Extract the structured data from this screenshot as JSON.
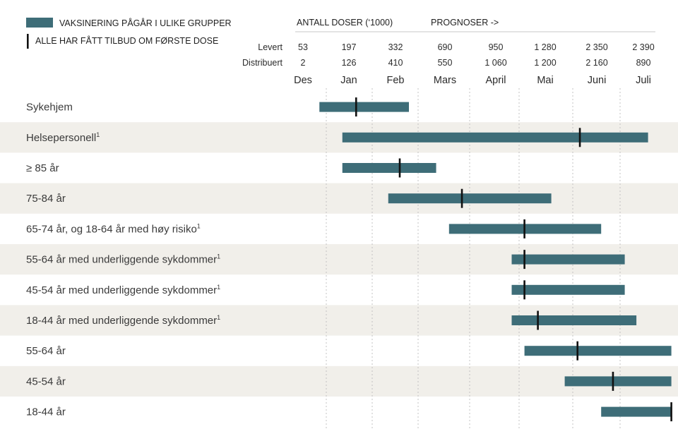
{
  "chart_data": {
    "type": "gantt",
    "legend": {
      "bar_label": "VAKSINERING PÅGÅR I ULIKE GRUPPER",
      "marker_label": "ALLE HAR FÅTT TILBUD OM FØRSTE DOSE"
    },
    "header": {
      "doses_title": "ANTALL DOSER (‘1000)",
      "forecast_title": "PROGNOSER ->"
    },
    "months": [
      "Des",
      "Jan",
      "Feb",
      "Mars",
      "April",
      "Mai",
      "Juni",
      "Juli"
    ],
    "doses": [
      {
        "label": "Levert",
        "values": [
          "53",
          "197",
          "332",
          "690",
          "950",
          "1 280",
          "2 350",
          "2 390"
        ]
      },
      {
        "label": "Distribuert",
        "values": [
          "2",
          "126",
          "410",
          "550",
          "1 060",
          "1 200",
          "2 160",
          "890"
        ]
      }
    ],
    "rows": [
      {
        "label": "Sykehjem",
        "sup": "",
        "start": 0.85,
        "end": 2.8,
        "marker": 1.65
      },
      {
        "label": "Helsepersonell",
        "sup": "1",
        "start": 1.35,
        "end": 7.6,
        "marker": 6.15
      },
      {
        "label": "≥ 85 år",
        "sup": "",
        "start": 1.35,
        "end": 3.35,
        "marker": 2.6
      },
      {
        "label": "75-84 år",
        "sup": "",
        "start": 2.35,
        "end": 5.6,
        "marker": 3.85
      },
      {
        "label": "65-74 år, og 18-64 år med høy risiko",
        "sup": "1",
        "start": 3.6,
        "end": 6.6,
        "marker": 5.1
      },
      {
        "label": "55-64 år med underliggende sykdommer",
        "sup": "1",
        "start": 4.85,
        "end": 7.1,
        "marker": 5.1
      },
      {
        "label": "45-54 år med underliggende sykdommer",
        "sup": "1",
        "start": 4.85,
        "end": 7.1,
        "marker": 5.1
      },
      {
        "label": "18-44 år med underliggende sykdommer",
        "sup": "1",
        "start": 4.85,
        "end": 7.35,
        "marker": 5.35
      },
      {
        "label": "55-64 år",
        "sup": "",
        "start": 5.1,
        "end": 8.1,
        "marker": 6.1
      },
      {
        "label": "45-54 år",
        "sup": "",
        "start": 5.85,
        "end": 8.1,
        "marker": 6.85
      },
      {
        "label": "18-44 år",
        "sup": "",
        "start": 6.6,
        "end": 8.1,
        "marker": 8.1
      }
    ],
    "colors": {
      "bar": "#3e6d78",
      "marker": "#111111",
      "stripe": "#f1efea",
      "grid": "#bdbdbd"
    }
  }
}
